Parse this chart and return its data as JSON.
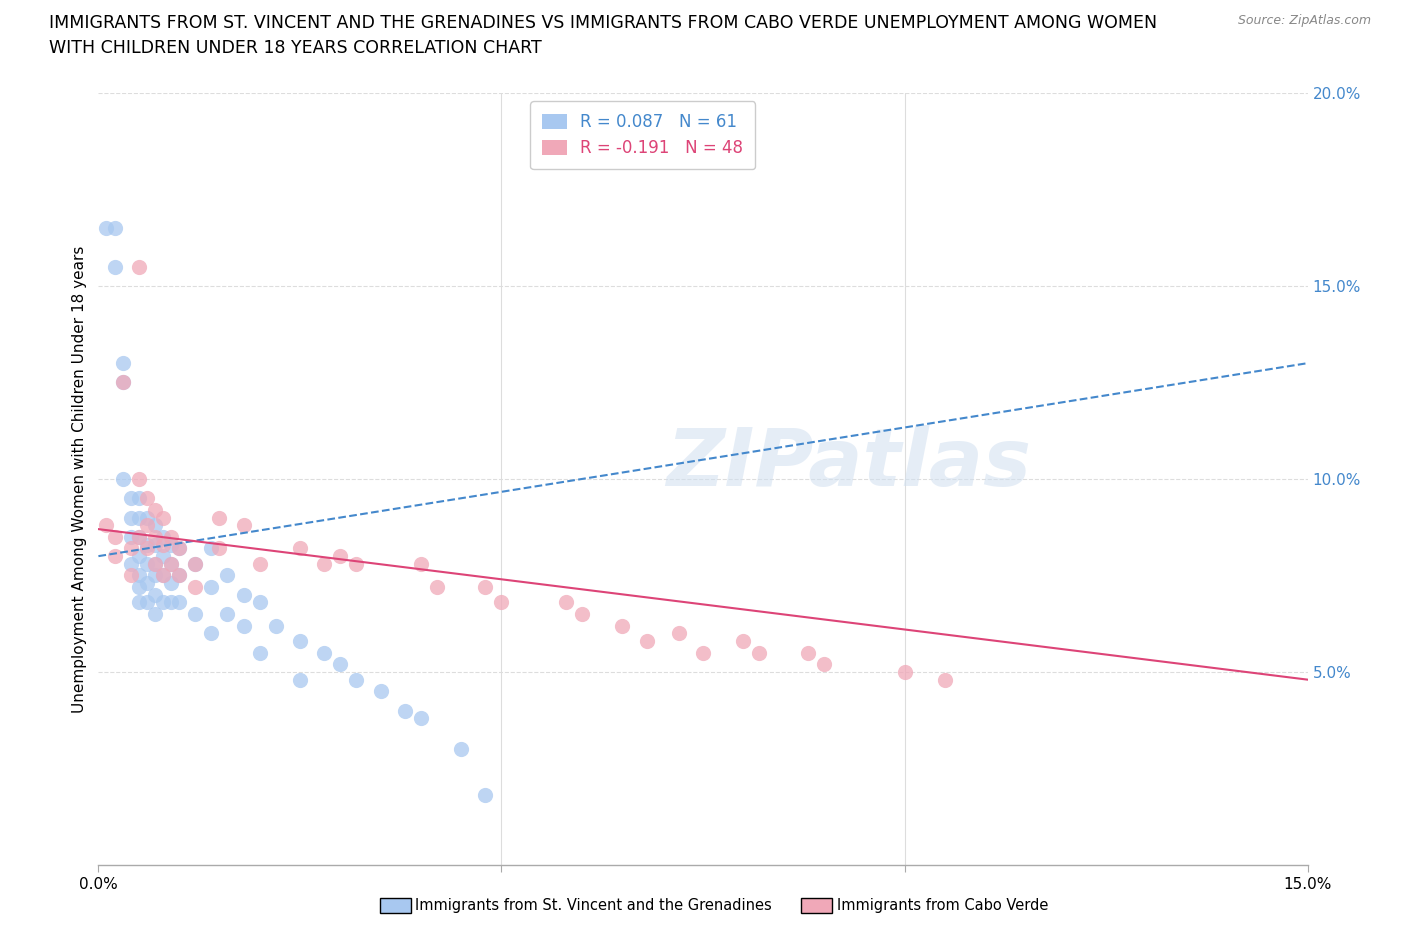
{
  "title_line1": "IMMIGRANTS FROM ST. VINCENT AND THE GRENADINES VS IMMIGRANTS FROM CABO VERDE UNEMPLOYMENT AMONG WOMEN",
  "title_line2": "WITH CHILDREN UNDER 18 YEARS CORRELATION CHART",
  "source": "Source: ZipAtlas.com",
  "ylabel": "Unemployment Among Women with Children Under 18 years",
  "xlim": [
    0.0,
    0.15
  ],
  "ylim": [
    0.0,
    0.2
  ],
  "series1_color": "#a8c8f0",
  "series2_color": "#f0a8b8",
  "series1_label": "Immigrants from St. Vincent and the Grenadines",
  "series2_label": "Immigrants from Cabo Verde",
  "series1_R": 0.087,
  "series1_N": 61,
  "series2_R": -0.191,
  "series2_N": 48,
  "trend1_color": "#4488cc",
  "trend2_color": "#dd4477",
  "trend1_linestyle": "--",
  "trend2_linestyle": "-",
  "watermark": "ZIPatlas",
  "background_color": "#ffffff",
  "grid_color": "#dddddd",
  "ytick_color": "#4488cc",
  "series1_x": [
    0.001,
    0.002,
    0.002,
    0.003,
    0.003,
    0.003,
    0.004,
    0.004,
    0.004,
    0.004,
    0.005,
    0.005,
    0.005,
    0.005,
    0.005,
    0.005,
    0.005,
    0.006,
    0.006,
    0.006,
    0.006,
    0.006,
    0.007,
    0.007,
    0.007,
    0.007,
    0.007,
    0.007,
    0.008,
    0.008,
    0.008,
    0.008,
    0.009,
    0.009,
    0.009,
    0.009,
    0.01,
    0.01,
    0.01,
    0.012,
    0.012,
    0.014,
    0.014,
    0.014,
    0.016,
    0.016,
    0.018,
    0.018,
    0.02,
    0.02,
    0.022,
    0.025,
    0.025,
    0.028,
    0.03,
    0.032,
    0.035,
    0.038,
    0.04,
    0.045,
    0.048
  ],
  "series1_y": [
    0.165,
    0.165,
    0.155,
    0.13,
    0.125,
    0.1,
    0.095,
    0.09,
    0.085,
    0.078,
    0.095,
    0.09,
    0.085,
    0.08,
    0.075,
    0.072,
    0.068,
    0.09,
    0.083,
    0.078,
    0.073,
    0.068,
    0.088,
    0.083,
    0.078,
    0.075,
    0.07,
    0.065,
    0.085,
    0.08,
    0.075,
    0.068,
    0.083,
    0.078,
    0.073,
    0.068,
    0.082,
    0.075,
    0.068,
    0.078,
    0.065,
    0.082,
    0.072,
    0.06,
    0.075,
    0.065,
    0.07,
    0.062,
    0.068,
    0.055,
    0.062,
    0.058,
    0.048,
    0.055,
    0.052,
    0.048,
    0.045,
    0.04,
    0.038,
    0.03,
    0.018
  ],
  "series2_x": [
    0.001,
    0.002,
    0.002,
    0.003,
    0.004,
    0.004,
    0.005,
    0.005,
    0.005,
    0.006,
    0.006,
    0.006,
    0.007,
    0.007,
    0.007,
    0.008,
    0.008,
    0.008,
    0.009,
    0.009,
    0.01,
    0.01,
    0.012,
    0.012,
    0.015,
    0.015,
    0.018,
    0.02,
    0.025,
    0.028,
    0.03,
    0.032,
    0.04,
    0.042,
    0.048,
    0.05,
    0.058,
    0.06,
    0.065,
    0.068,
    0.072,
    0.075,
    0.08,
    0.082,
    0.088,
    0.09,
    0.1,
    0.105
  ],
  "series2_y": [
    0.088,
    0.085,
    0.08,
    0.125,
    0.082,
    0.075,
    0.155,
    0.1,
    0.085,
    0.095,
    0.088,
    0.082,
    0.092,
    0.085,
    0.078,
    0.09,
    0.083,
    0.075,
    0.085,
    0.078,
    0.082,
    0.075,
    0.078,
    0.072,
    0.09,
    0.082,
    0.088,
    0.078,
    0.082,
    0.078,
    0.08,
    0.078,
    0.078,
    0.072,
    0.072,
    0.068,
    0.068,
    0.065,
    0.062,
    0.058,
    0.06,
    0.055,
    0.058,
    0.055,
    0.055,
    0.052,
    0.05,
    0.048
  ]
}
